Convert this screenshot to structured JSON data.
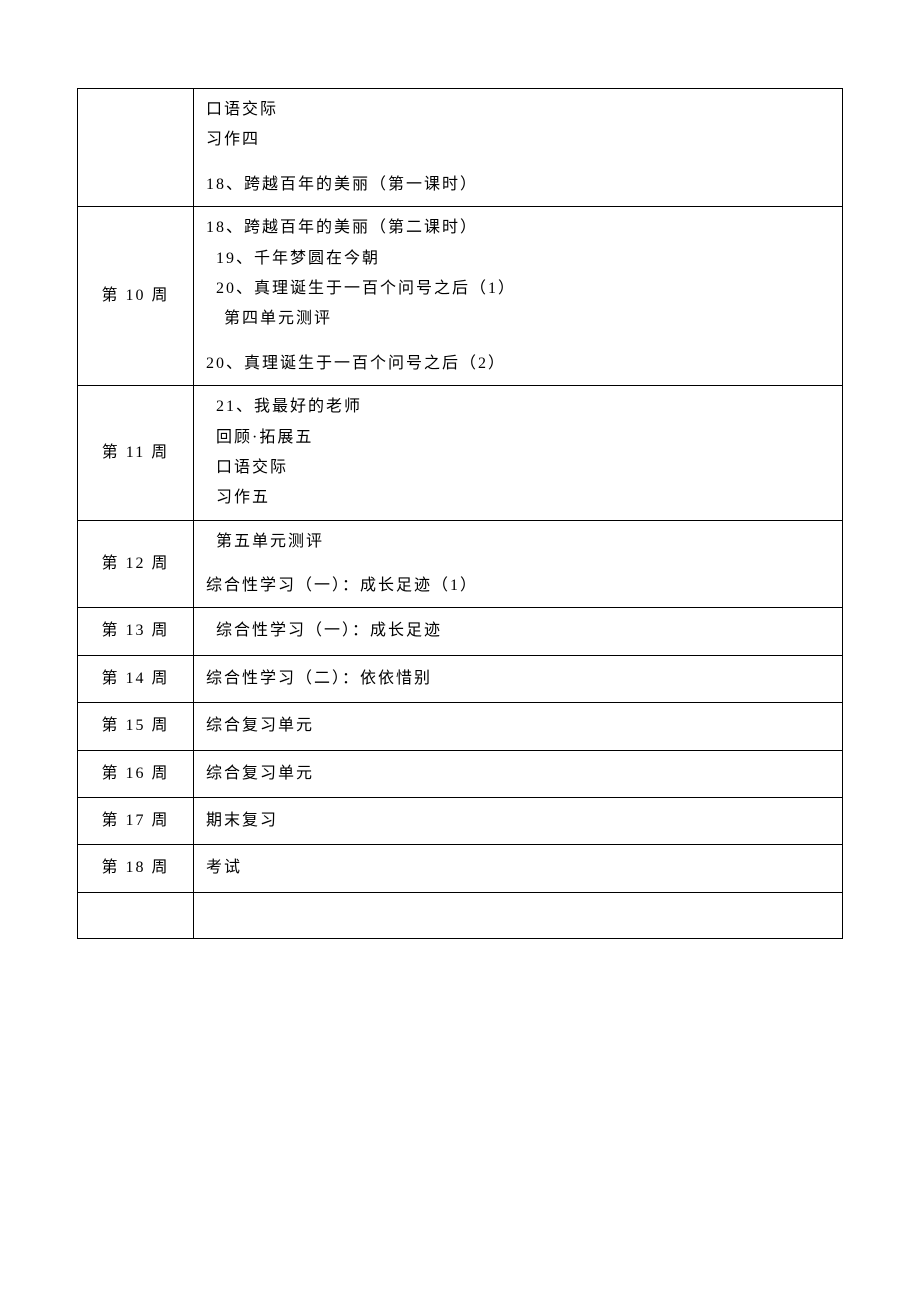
{
  "table": {
    "border_color": "#000000",
    "background_color": "#ffffff",
    "text_color": "#000000",
    "font_size": 16,
    "font_family": "SimSun",
    "rows": [
      {
        "week": "",
        "lines": [
          {
            "text": "口语交际",
            "indent": 1
          },
          {
            "text": "习作四",
            "indent": 1
          },
          {
            "text": "",
            "spacer": true
          },
          {
            "text": "18、跨越百年的美丽（第一课时）",
            "indent": 1
          }
        ]
      },
      {
        "week": "第 10 周",
        "lines": [
          {
            "text": "18、跨越百年的美丽（第二课时）",
            "indent": 1
          },
          {
            "text": "19、千年梦圆在今朝",
            "indent": 2
          },
          {
            "text": "20、真理诞生于一百个问号之后（1）",
            "indent": 2
          },
          {
            "text": "第四单元测评",
            "indent": 3
          },
          {
            "text": "",
            "spacer": true
          },
          {
            "text": "20、真理诞生于一百个问号之后（2）",
            "indent": 1
          }
        ]
      },
      {
        "week": "第 11 周",
        "lines": [
          {
            "text": "21、我最好的老师",
            "indent": 2
          },
          {
            "text": "回顾·拓展五",
            "indent": 2
          },
          {
            "text": "口语交际",
            "indent": 2
          },
          {
            "text": "习作五",
            "indent": 2
          }
        ]
      },
      {
        "week": "第 12 周",
        "lines": [
          {
            "text": "第五单元测评",
            "indent": 2
          },
          {
            "text": "",
            "spacer": true
          },
          {
            "text": "综合性学习（一）：成长足迹（1）",
            "indent": 1
          }
        ]
      },
      {
        "week": "第 13 周",
        "lines": [
          {
            "text": "综合性学习（一）：成长足迹",
            "indent": 2
          }
        ]
      },
      {
        "week": "第 14 周",
        "lines": [
          {
            "text": "综合性学习（二）：依依惜别",
            "indent": 1
          }
        ]
      },
      {
        "week": "第 15 周",
        "lines": [
          {
            "text": "综合复习单元",
            "indent": 1
          }
        ]
      },
      {
        "week": "第 16 周",
        "lines": [
          {
            "text": "综合复习单元",
            "indent": 1
          }
        ]
      },
      {
        "week": "第 17 周",
        "lines": [
          {
            "text": "期末复习",
            "indent": 1
          }
        ]
      },
      {
        "week": "第 18 周",
        "lines": [
          {
            "text": "考试",
            "indent": 1
          }
        ]
      },
      {
        "week": "",
        "empty": true,
        "lines": []
      }
    ]
  }
}
